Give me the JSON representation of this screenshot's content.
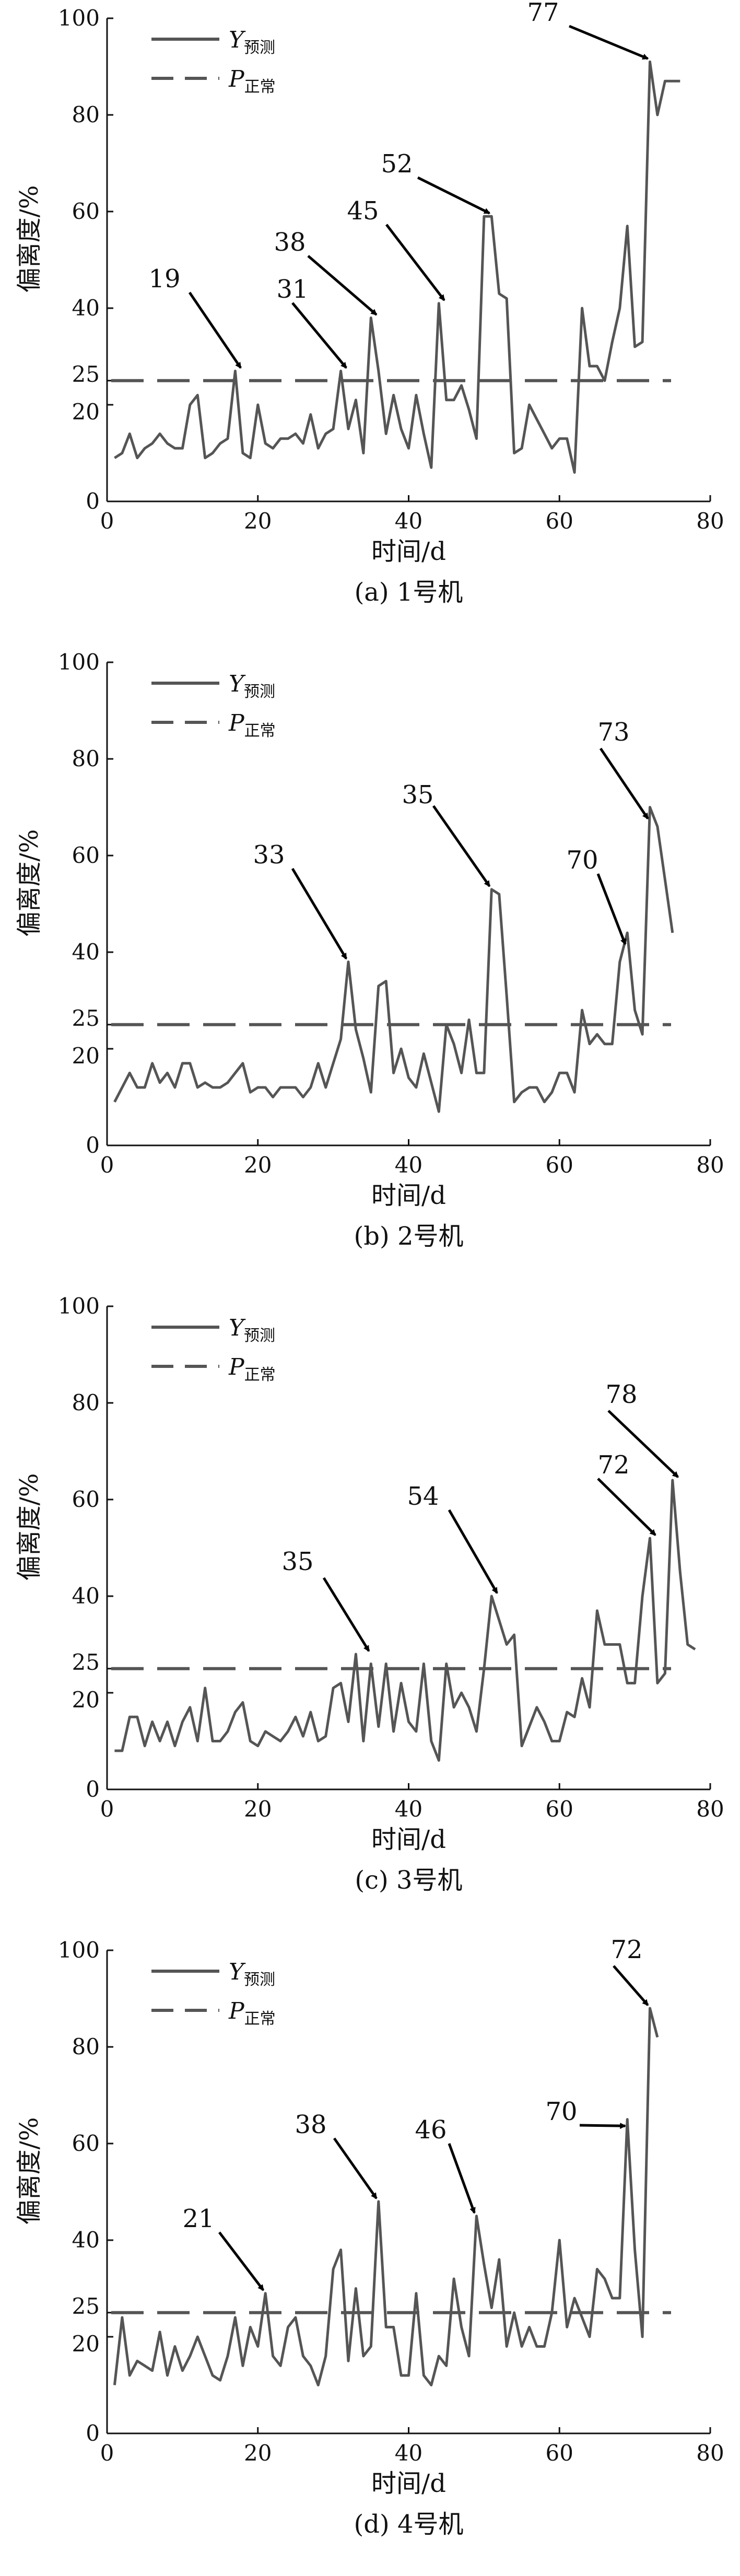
{
  "chart_data": [
    {
      "type": "line",
      "caption": "(a) 1号机",
      "xlabel": "时间/d",
      "ylabel": "偏离度/%",
      "xlim": [
        0,
        80
      ],
      "ylim": [
        0,
        100
      ],
      "xticks": [
        0,
        20,
        40,
        60,
        80
      ],
      "yticks": [
        0,
        20,
        25,
        40,
        60,
        80,
        100
      ],
      "legend": {
        "position": "top-left",
        "entries": [
          {
            "main": "Y",
            "sub": "预测",
            "style": "solid"
          },
          {
            "main": "P",
            "sub": "正常",
            "style": "dashed"
          }
        ]
      },
      "threshold": 25,
      "series": {
        "x": [
          1,
          2,
          3,
          4,
          5,
          6,
          7,
          8,
          9,
          10,
          11,
          12,
          13,
          14,
          15,
          16,
          17,
          18,
          19,
          20,
          21,
          22,
          23,
          24,
          25,
          26,
          27,
          28,
          29,
          30,
          31,
          32,
          33,
          34,
          35,
          36,
          37,
          38,
          39,
          40,
          41,
          42,
          43,
          44,
          45,
          46,
          47,
          48,
          49,
          50,
          51,
          52,
          53,
          54,
          55,
          56,
          57,
          58,
          59,
          60,
          61,
          62,
          63,
          64,
          65,
          66,
          67,
          68,
          69,
          70,
          71,
          72,
          73,
          74,
          75,
          76
        ],
        "y": [
          9,
          10,
          14,
          9,
          11,
          12,
          14,
          12,
          11,
          11,
          20,
          22,
          9,
          10,
          12,
          13,
          27,
          10,
          9,
          20,
          12,
          11,
          13,
          13,
          14,
          12,
          18,
          11,
          14,
          15,
          27,
          15,
          21,
          10,
          38,
          27,
          14,
          22,
          15,
          11,
          22,
          14,
          7,
          41,
          21,
          21,
          24,
          19,
          13,
          59,
          59,
          43,
          42,
          10,
          11,
          20,
          17,
          14,
          11,
          13,
          13,
          6,
          40,
          28,
          28,
          25,
          33,
          40,
          57,
          32,
          33,
          91,
          80,
          87,
          87,
          87
        ]
      },
      "annotations": [
        {
          "label": "19",
          "x": 18,
          "y": 27
        },
        {
          "label": "31",
          "x": 32,
          "y": 27
        },
        {
          "label": "38",
          "x": 36,
          "y": 38
        },
        {
          "label": "45",
          "x": 45,
          "y": 41
        },
        {
          "label": "52",
          "x": 51,
          "y": 59
        },
        {
          "label": "77",
          "x": 72,
          "y": 91
        }
      ]
    },
    {
      "type": "line",
      "caption": "(b) 2号机",
      "xlabel": "时间/d",
      "ylabel": "偏离度/%",
      "xlim": [
        0,
        80
      ],
      "ylim": [
        0,
        100
      ],
      "xticks": [
        0,
        20,
        40,
        60,
        80
      ],
      "yticks": [
        0,
        20,
        25,
        40,
        60,
        80,
        100
      ],
      "legend": {
        "position": "top-left",
        "entries": [
          {
            "main": "Y",
            "sub": "预测",
            "style": "solid"
          },
          {
            "main": "P",
            "sub": "正常",
            "style": "dashed"
          }
        ]
      },
      "threshold": 25,
      "series": {
        "x": [
          1,
          2,
          3,
          4,
          5,
          6,
          7,
          8,
          9,
          10,
          11,
          12,
          13,
          14,
          15,
          16,
          17,
          18,
          19,
          20,
          21,
          22,
          23,
          24,
          25,
          26,
          27,
          28,
          29,
          30,
          31,
          32,
          33,
          34,
          35,
          36,
          37,
          38,
          39,
          40,
          41,
          42,
          43,
          44,
          45,
          46,
          47,
          48,
          49,
          50,
          51,
          52,
          53,
          54,
          55,
          56,
          57,
          58,
          59,
          60,
          61,
          62,
          63,
          64,
          65,
          66,
          67,
          68,
          69,
          70,
          71,
          72,
          73,
          74,
          75
        ],
        "y": [
          9,
          12,
          15,
          12,
          12,
          17,
          13,
          15,
          12,
          17,
          17,
          12,
          13,
          12,
          12,
          13,
          15,
          17,
          11,
          12,
          12,
          10,
          12,
          12,
          12,
          10,
          12,
          17,
          12,
          17,
          22,
          38,
          24,
          18,
          11,
          33,
          34,
          15,
          20,
          14,
          12,
          19,
          13,
          7,
          25,
          21,
          15,
          26,
          15,
          15,
          53,
          52,
          31,
          9,
          11,
          12,
          12,
          9,
          11,
          15,
          15,
          11,
          28,
          21,
          23,
          21,
          21,
          38,
          44,
          28,
          23,
          70,
          66,
          55,
          44
        ]
      },
      "annotations": [
        {
          "label": "33",
          "x": 32,
          "y": 38
        },
        {
          "label": "35",
          "x": 51,
          "y": 53
        },
        {
          "label": "70",
          "x": 69,
          "y": 41
        },
        {
          "label": "73",
          "x": 72,
          "y": 67
        }
      ]
    },
    {
      "type": "line",
      "caption": "(c) 3号机",
      "xlabel": "时间/d",
      "ylabel": "偏离度/%",
      "xlim": [
        0,
        80
      ],
      "ylim": [
        0,
        100
      ],
      "xticks": [
        0,
        20,
        40,
        60,
        80
      ],
      "yticks": [
        0,
        20,
        25,
        40,
        60,
        80,
        100
      ],
      "legend": {
        "position": "top-left",
        "entries": [
          {
            "main": "Y",
            "sub": "预测",
            "style": "solid"
          },
          {
            "main": "P",
            "sub": "正常",
            "style": "dashed"
          }
        ]
      },
      "threshold": 25,
      "series": {
        "x": [
          1,
          2,
          3,
          4,
          5,
          6,
          7,
          8,
          9,
          10,
          11,
          12,
          13,
          14,
          15,
          16,
          17,
          18,
          19,
          20,
          21,
          22,
          23,
          24,
          25,
          26,
          27,
          28,
          29,
          30,
          31,
          32,
          33,
          34,
          35,
          36,
          37,
          38,
          39,
          40,
          41,
          42,
          43,
          44,
          45,
          46,
          47,
          48,
          49,
          50,
          51,
          52,
          53,
          54,
          55,
          56,
          57,
          58,
          59,
          60,
          61,
          62,
          63,
          64,
          65,
          66,
          67,
          68,
          69,
          70,
          71,
          72,
          73,
          74,
          75,
          76,
          77,
          78
        ],
        "y": [
          8,
          8,
          15,
          15,
          9,
          14,
          10,
          14,
          9,
          14,
          17,
          10,
          21,
          10,
          10,
          12,
          16,
          18,
          10,
          9,
          12,
          11,
          10,
          12,
          15,
          11,
          16,
          10,
          11,
          21,
          22,
          14,
          28,
          10,
          26,
          13,
          26,
          12,
          22,
          14,
          12,
          26,
          10,
          6,
          26,
          17,
          20,
          17,
          12,
          25,
          40,
          35,
          30,
          32,
          9,
          13,
          17,
          14,
          10,
          10,
          16,
          15,
          23,
          17,
          37,
          30,
          30,
          30,
          22,
          22,
          40,
          52,
          22,
          24,
          64,
          45,
          30,
          29
        ]
      },
      "annotations": [
        {
          "label": "35",
          "x": 35,
          "y": 28
        },
        {
          "label": "54",
          "x": 52,
          "y": 40
        },
        {
          "label": "72",
          "x": 73,
          "y": 52
        },
        {
          "label": "78",
          "x": 76,
          "y": 64
        }
      ]
    },
    {
      "type": "line",
      "caption": "(d) 4号机",
      "xlabel": "时间/d",
      "ylabel": "偏离度/%",
      "xlim": [
        0,
        80
      ],
      "ylim": [
        0,
        100
      ],
      "xticks": [
        0,
        20,
        40,
        60,
        80
      ],
      "yticks": [
        0,
        20,
        25,
        40,
        60,
        80,
        100
      ],
      "legend": {
        "position": "top-left",
        "entries": [
          {
            "main": "Y",
            "sub": "预测",
            "style": "solid"
          },
          {
            "main": "P",
            "sub": "正常",
            "style": "dashed"
          }
        ]
      },
      "threshold": 25,
      "series": {
        "x": [
          1,
          2,
          3,
          4,
          5,
          6,
          7,
          8,
          9,
          10,
          11,
          12,
          13,
          14,
          15,
          16,
          17,
          18,
          19,
          20,
          21,
          22,
          23,
          24,
          25,
          26,
          27,
          28,
          29,
          30,
          31,
          32,
          33,
          34,
          35,
          36,
          37,
          38,
          39,
          40,
          41,
          42,
          43,
          44,
          45,
          46,
          47,
          48,
          49,
          50,
          51,
          52,
          53,
          54,
          55,
          56,
          57,
          58,
          59,
          60,
          61,
          62,
          63,
          64,
          65,
          66,
          67,
          68,
          69,
          70,
          71,
          72,
          73
        ],
        "y": [
          10,
          24,
          12,
          15,
          14,
          13,
          21,
          12,
          18,
          13,
          16,
          20,
          16,
          12,
          11,
          16,
          24,
          14,
          22,
          18,
          29,
          16,
          14,
          22,
          24,
          16,
          14,
          10,
          16,
          34,
          38,
          15,
          30,
          16,
          18,
          48,
          22,
          22,
          12,
          12,
          29,
          12,
          10,
          16,
          14,
          32,
          22,
          16,
          45,
          35,
          26,
          36,
          18,
          25,
          18,
          22,
          18,
          18,
          25,
          40,
          22,
          28,
          24,
          20,
          34,
          32,
          28,
          28,
          65,
          38,
          20,
          88,
          82
        ]
      },
      "annotations": [
        {
          "label": "21",
          "x": 21,
          "y": 29
        },
        {
          "label": "38",
          "x": 36,
          "y": 48
        },
        {
          "label": "46",
          "x": 49,
          "y": 45
        },
        {
          "label": "70",
          "x": 69,
          "y": 63
        },
        {
          "label": "72",
          "x": 72,
          "y": 88
        }
      ]
    }
  ]
}
